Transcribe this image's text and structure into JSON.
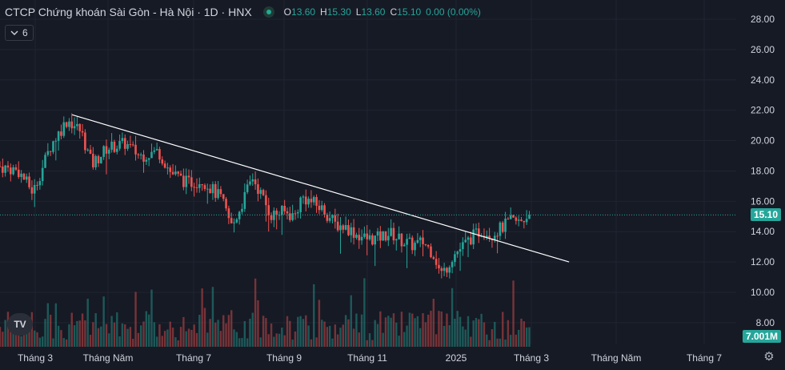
{
  "legend": {
    "symbol_title": "CTCP Chứng khoán Sài Gòn - Hà Nội · 1D · HNX",
    "open_label": "O",
    "open_value": "13.60",
    "high_label": "H",
    "high_value": "15.30",
    "low_label": "L",
    "low_value": "13.60",
    "close_label": "C",
    "close_value": "15.10",
    "change_value": "0.00 (0.00%)"
  },
  "indicator_toggle": {
    "count": "6",
    "icon": "chevron-down-icon"
  },
  "price_tag": {
    "value": "15.10",
    "color": "#26a69a"
  },
  "volume_tag": {
    "value": "7.001M",
    "color": "#26a69a"
  },
  "logo": {
    "text": "TV"
  },
  "icons": {
    "settings": "gear-icon"
  },
  "colors": {
    "background": "#161a25",
    "up": "#26a69a",
    "down": "#ef5350",
    "trendline": "#ffffff",
    "text": "#d1d4dc",
    "grid": "#1f2431"
  },
  "chart_data": {
    "type": "candlestick",
    "ylim": [
      7,
      29
    ],
    "yticks": [
      "28.00",
      "26.00",
      "24.00",
      "22.00",
      "20.00",
      "18.00",
      "16.00",
      "14.00",
      "12.00",
      "10.00",
      "8.00"
    ],
    "xticks": [
      "Tháng 3",
      "Tháng Năm",
      "Tháng 7",
      "Tháng 9",
      "Tháng 11",
      "2025",
      "Tháng 3",
      "Tháng Năm",
      "Tháng 7"
    ],
    "last_price": 15.1,
    "trendline": {
      "start": [
        0.098,
        21.7
      ],
      "end": [
        0.773,
        12.0
      ]
    },
    "price_path": [
      [
        0.0,
        18.3
      ],
      [
        0.025,
        18.0
      ],
      [
        0.045,
        16.6
      ],
      [
        0.07,
        19.8
      ],
      [
        0.092,
        21.4
      ],
      [
        0.11,
        20.6
      ],
      [
        0.125,
        18.4
      ],
      [
        0.145,
        19.5
      ],
      [
        0.17,
        19.8
      ],
      [
        0.19,
        19.0
      ],
      [
        0.215,
        19.3
      ],
      [
        0.232,
        17.9
      ],
      [
        0.255,
        17.2
      ],
      [
        0.275,
        17.4
      ],
      [
        0.3,
        16.2
      ],
      [
        0.315,
        14.3
      ],
      [
        0.33,
        16.0
      ],
      [
        0.343,
        17.6
      ],
      [
        0.352,
        16.7
      ],
      [
        0.368,
        15.1
      ],
      [
        0.385,
        15.3
      ],
      [
        0.4,
        15.0
      ],
      [
        0.41,
        16.3
      ],
      [
        0.425,
        15.9
      ],
      [
        0.44,
        15.4
      ],
      [
        0.455,
        14.5
      ],
      [
        0.47,
        14.3
      ],
      [
        0.485,
        13.8
      ],
      [
        0.5,
        13.5
      ],
      [
        0.515,
        13.6
      ],
      [
        0.53,
        13.9
      ],
      [
        0.545,
        13.4
      ],
      [
        0.56,
        13.1
      ],
      [
        0.575,
        13.3
      ],
      [
        0.59,
        12.5
      ],
      [
        0.598,
        11.2
      ],
      [
        0.605,
        11.5
      ],
      [
        0.615,
        12.4
      ],
      [
        0.628,
        13.0
      ],
      [
        0.64,
        13.6
      ],
      [
        0.655,
        14.1
      ],
      [
        0.667,
        13.8
      ],
      [
        0.68,
        14.2
      ],
      [
        0.695,
        14.7
      ],
      [
        0.705,
        14.6
      ],
      [
        0.719,
        15.1
      ]
    ],
    "volume_last": 7.001
  }
}
